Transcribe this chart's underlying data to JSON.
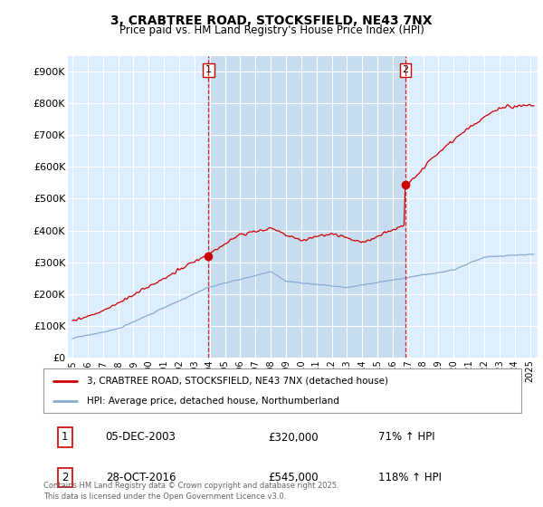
{
  "title": "3, CRABTREE ROAD, STOCKSFIELD, NE43 7NX",
  "subtitle": "Price paid vs. HM Land Registry's House Price Index (HPI)",
  "plot_bg_color": "#ddeeff",
  "shaded_region_color": "#c8dcf0",
  "ylim": [
    0,
    950000
  ],
  "yticks": [
    0,
    100000,
    200000,
    300000,
    400000,
    500000,
    600000,
    700000,
    800000,
    900000
  ],
  "ytick_labels": [
    "£0",
    "£100K",
    "£200K",
    "£300K",
    "£400K",
    "£500K",
    "£600K",
    "£700K",
    "£800K",
    "£900K"
  ],
  "xlim_start": 1994.7,
  "xlim_end": 2025.5,
  "purchase1": {
    "date": 2003.92,
    "price": 320000,
    "label": "1",
    "date_str": "05-DEC-2003",
    "pct": "71%"
  },
  "purchase2": {
    "date": 2016.83,
    "price": 545000,
    "label": "2",
    "date_str": "28-OCT-2016",
    "pct": "118%"
  },
  "red_line_color": "#cc0000",
  "blue_line_color": "#88aacc",
  "vline_color": "#cc0000",
  "marker_color": "#cc0000",
  "legend_label_red": "3, CRABTREE ROAD, STOCKSFIELD, NE43 7NX (detached house)",
  "legend_label_blue": "HPI: Average price, detached house, Northumberland",
  "footer": "Contains HM Land Registry data © Crown copyright and database right 2025.\nThis data is licensed under the Open Government Licence v3.0.",
  "xticks": [
    1995,
    1996,
    1997,
    1998,
    1999,
    2000,
    2001,
    2002,
    2003,
    2004,
    2005,
    2006,
    2007,
    2008,
    2009,
    2010,
    2011,
    2012,
    2013,
    2014,
    2015,
    2016,
    2017,
    2018,
    2019,
    2020,
    2021,
    2022,
    2023,
    2024,
    2025
  ]
}
